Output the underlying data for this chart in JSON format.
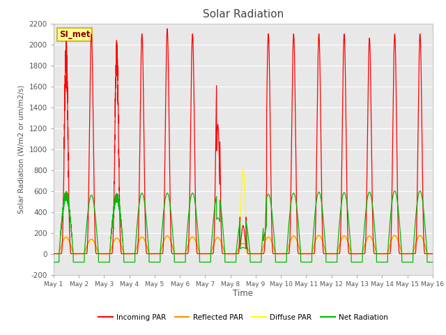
{
  "title": "Solar Radiation",
  "ylabel": "Solar Radiation (W/m2 or um/m2/s)",
  "xlabel": "Time",
  "ylim": [
    -200,
    2200
  ],
  "xlim": [
    0,
    15
  ],
  "yticks": [
    -200,
    0,
    200,
    400,
    600,
    800,
    1000,
    1200,
    1400,
    1600,
    1800,
    2000,
    2200
  ],
  "xtick_labels": [
    "May 1",
    "May 2",
    "May 3",
    "May 4",
    "May 5",
    "May 6",
    "May 7",
    "May 8",
    "May 9",
    "May 10",
    "May 11",
    "May 12",
    "May 13",
    "May 14",
    "May 15",
    "May 16"
  ],
  "xtick_positions": [
    0,
    1,
    2,
    3,
    4,
    5,
    6,
    7,
    8,
    9,
    10,
    11,
    12,
    13,
    14,
    15
  ],
  "colors": {
    "incoming": "#FF0000",
    "reflected": "#FF8C00",
    "diffuse": "#FFFF00",
    "net": "#00BB00"
  },
  "background_color": "#E8E8E8",
  "grid_color": "#FFFFFF",
  "legend_label": "SI_met",
  "legend_box_facecolor": "#FFFF99",
  "legend_box_edgecolor": "#CCAA00",
  "title_color": "#444444",
  "label_color": "#555555",
  "tick_color": "#555555",
  "figsize": [
    6.4,
    4.8
  ],
  "dpi": 100
}
